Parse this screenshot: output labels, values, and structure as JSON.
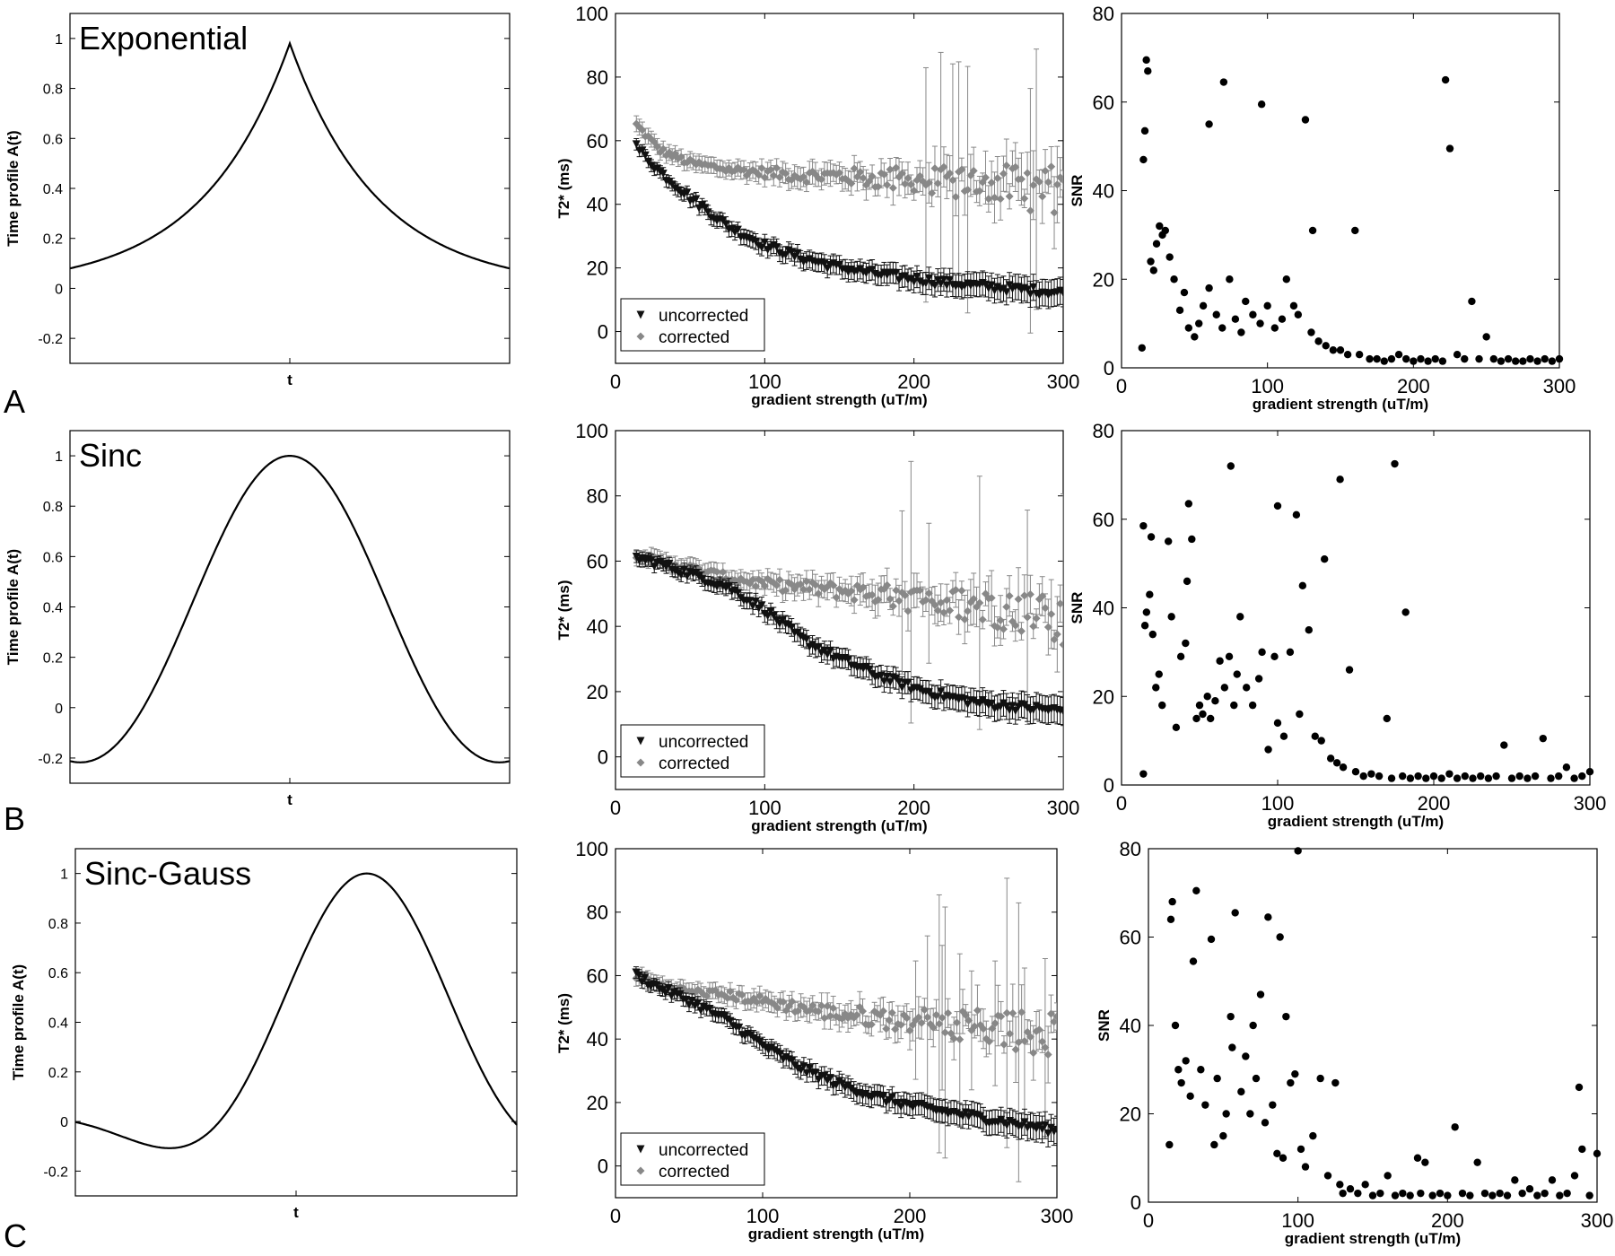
{
  "panel_labels": [
    "A",
    "B",
    "C"
  ],
  "chart_data": [
    {
      "id": "A-profile",
      "type": "line",
      "title": "Exponential",
      "xlabel": "t",
      "ylabel": "Time profile A(t)",
      "ylim": [
        -0.3,
        1.1
      ],
      "yticks": [
        "-0.2",
        "0",
        "0.2",
        "0.4",
        "0.6",
        "0.8",
        "1"
      ],
      "shape": "exponential",
      "params": {
        "peak": 0.98,
        "edge": 0.08
      },
      "series": [
        {
          "color": "#000000"
        }
      ]
    },
    {
      "id": "A-t2",
      "type": "scatter",
      "xlabel": "gradient strength (uT/m)",
      "ylabel": "T2* (ms)",
      "xlim": [
        0,
        300
      ],
      "ylim": [
        -10,
        100
      ],
      "xticks": [
        "0",
        "100",
        "200",
        "300"
      ],
      "yticks": [
        "0",
        "20",
        "40",
        "60",
        "80",
        "100"
      ],
      "legend_position": "bottom-left",
      "series": [
        {
          "name": "uncorrected",
          "marker": "triangle-down",
          "color": "#111111",
          "x": [
            14,
            30,
            50,
            75,
            100,
            125,
            150,
            175,
            200,
            225,
            250,
            275,
            300
          ],
          "y": [
            58,
            50,
            42,
            33,
            27,
            23,
            20,
            18,
            16.5,
            15,
            14,
            13,
            12
          ]
        },
        {
          "name": "corrected",
          "marker": "diamond",
          "color": "#888888",
          "x": [
            14,
            30,
            50,
            75,
            100,
            125,
            150,
            175,
            200,
            225,
            250,
            275,
            300
          ],
          "y": [
            65,
            57,
            53,
            51,
            50,
            49,
            49,
            48,
            48,
            47,
            47,
            45,
            44
          ]
        }
      ]
    },
    {
      "id": "A-snr",
      "type": "scatter",
      "xlabel": "gradient strength (uT/m)",
      "ylabel": "SNR",
      "xlim": [
        0,
        300
      ],
      "ylim": [
        0,
        80
      ],
      "xticks": [
        "0",
        "100",
        "200",
        "300"
      ],
      "yticks": [
        "0",
        "20",
        "40",
        "60",
        "80"
      ],
      "series": [
        {
          "color": "#000000",
          "x": [
            14,
            15,
            16,
            17,
            18,
            20,
            22,
            24,
            26,
            28,
            30,
            33,
            36,
            40,
            43,
            46,
            50,
            53,
            56,
            60,
            60,
            65,
            69,
            70,
            74,
            78,
            82,
            85,
            90,
            95,
            96,
            100,
            105,
            110,
            113,
            118,
            121,
            126,
            130,
            131,
            135,
            140,
            145,
            150,
            155,
            160,
            163,
            170,
            175,
            180,
            185,
            190,
            195,
            200,
            205,
            210,
            215,
            220,
            222,
            225,
            230,
            235,
            240,
            245,
            250,
            255,
            260,
            265,
            270,
            275,
            280,
            285,
            290,
            295,
            300
          ],
          "y": [
            4.5,
            47,
            53.5,
            69.5,
            67,
            24,
            22,
            28,
            32,
            30,
            31,
            25,
            20,
            13,
            17,
            9,
            7,
            10,
            14,
            55,
            18,
            12,
            9,
            64.5,
            20,
            11,
            8,
            15,
            12,
            10,
            59.5,
            14,
            9,
            11,
            20,
            14,
            12,
            56,
            8,
            31,
            6,
            5,
            4,
            4,
            3,
            31,
            3,
            2,
            2,
            1.5,
            2,
            3,
            2,
            1.5,
            2,
            1.5,
            2,
            1.5,
            65,
            49.5,
            3,
            2,
            15,
            2,
            7,
            2,
            1.5,
            2,
            1.5,
            1.5,
            2,
            1.5,
            2,
            1.5,
            2
          ]
        }
      ]
    },
    {
      "id": "B-profile",
      "type": "line",
      "title": "Sinc",
      "xlabel": "t",
      "ylabel": "Time profile A(t)",
      "ylim": [
        -0.3,
        1.1
      ],
      "yticks": [
        "-0.2",
        "0",
        "0.2",
        "0.4",
        "0.6",
        "0.8",
        "1"
      ],
      "shape": "sinc",
      "params": {
        "peak": 1.0,
        "min": -0.2
      },
      "series": [
        {
          "color": "#000000"
        }
      ]
    },
    {
      "id": "B-t2",
      "type": "scatter",
      "xlabel": "gradient strength (uT/m)",
      "ylabel": "T2* (ms)",
      "xlim": [
        0,
        300
      ],
      "ylim": [
        -10,
        100
      ],
      "xticks": [
        "0",
        "100",
        "200",
        "300"
      ],
      "yticks": [
        "0",
        "20",
        "40",
        "60",
        "80",
        "100"
      ],
      "legend_position": "bottom-left",
      "series": [
        {
          "name": "uncorrected",
          "marker": "triangle-down",
          "color": "#111111",
          "x": [
            14,
            30,
            50,
            75,
            100,
            125,
            150,
            175,
            200,
            225,
            250,
            275,
            300
          ],
          "y": [
            61,
            59,
            56,
            52,
            45,
            36,
            30,
            25,
            21,
            18,
            16,
            15,
            14
          ]
        },
        {
          "name": "corrected",
          "marker": "diamond",
          "color": "#888888",
          "x": [
            14,
            30,
            50,
            75,
            100,
            125,
            150,
            175,
            200,
            225,
            250,
            275,
            300
          ],
          "y": [
            62,
            60,
            58,
            55,
            53,
            52,
            51,
            50,
            48,
            47,
            46,
            44,
            40
          ]
        }
      ]
    },
    {
      "id": "B-snr",
      "type": "scatter",
      "xlabel": "gradient strength (uT/m)",
      "ylabel": "SNR",
      "xlim": [
        0,
        300
      ],
      "ylim": [
        0,
        80
      ],
      "xticks": [
        "0",
        "100",
        "200",
        "300"
      ],
      "yticks": [
        "0",
        "20",
        "40",
        "60",
        "80"
      ],
      "series": [
        {
          "color": "#000000",
          "x": [
            14,
            14,
            15,
            16,
            18,
            19,
            20,
            22,
            24,
            26,
            30,
            32,
            35,
            38,
            41,
            42,
            43,
            45,
            48,
            50,
            52,
            55,
            57,
            60,
            63,
            66,
            69,
            70,
            72,
            74,
            76,
            80,
            84,
            88,
            90,
            94,
            98,
            100,
            100,
            104,
            108,
            112,
            114,
            116,
            120,
            124,
            128,
            130,
            134,
            138,
            140,
            142,
            146,
            150,
            155,
            160,
            165,
            170,
            173,
            175,
            180,
            182,
            185,
            190,
            195,
            200,
            205,
            210,
            215,
            220,
            225,
            230,
            235,
            240,
            245,
            250,
            255,
            260,
            265,
            270,
            275,
            280,
            285,
            290,
            295,
            300
          ],
          "y": [
            2.5,
            58.5,
            36,
            39,
            43,
            56,
            34,
            22,
            25,
            18,
            55,
            38,
            13,
            29,
            32,
            46,
            63.5,
            55.5,
            15,
            18,
            16,
            20,
            15,
            19,
            28,
            22,
            29,
            72,
            18,
            25,
            38,
            22,
            18,
            24,
            30,
            8,
            29,
            63,
            14,
            11,
            30,
            61,
            16,
            45,
            35,
            11,
            10,
            51,
            6,
            5,
            69,
            4,
            26,
            3,
            2,
            2.5,
            2,
            15,
            1.5,
            72.5,
            2,
            39,
            1.5,
            2,
            1.5,
            2,
            1.5,
            2.5,
            1.5,
            2,
            1.5,
            2,
            1.5,
            2,
            9,
            1.5,
            2,
            1.5,
            2,
            10.5,
            1.5,
            2,
            4,
            1.5,
            2,
            3
          ]
        }
      ]
    },
    {
      "id": "C-profile",
      "type": "line",
      "title": "Sinc-Gauss",
      "xlabel": "t",
      "ylabel": "Time profile A(t)",
      "ylim": [
        -0.3,
        1.1
      ],
      "yticks": [
        "-0.2",
        "0",
        "0.2",
        "0.4",
        "0.6",
        "0.8",
        "1"
      ],
      "shape": "sinc-gauss",
      "params": {
        "peak": 1.0,
        "min": -0.14
      },
      "series": [
        {
          "color": "#000000"
        }
      ]
    },
    {
      "id": "C-t2",
      "type": "scatter",
      "xlabel": "gradient strength (uT/m)",
      "ylabel": "T2* (ms)",
      "xlim": [
        0,
        300
      ],
      "ylim": [
        -10,
        100
      ],
      "xticks": [
        "0",
        "100",
        "200",
        "300"
      ],
      "yticks": [
        "0",
        "20",
        "40",
        "60",
        "80",
        "100"
      ],
      "legend_position": "bottom-left",
      "series": [
        {
          "name": "uncorrected",
          "marker": "triangle-down",
          "color": "#111111",
          "x": [
            14,
            30,
            50,
            75,
            100,
            125,
            150,
            175,
            200,
            225,
            250,
            275,
            300
          ],
          "y": [
            60,
            56,
            52,
            46,
            38,
            31,
            26,
            22,
            19,
            17,
            15,
            13,
            11
          ]
        },
        {
          "name": "corrected",
          "marker": "diamond",
          "color": "#888888",
          "x": [
            14,
            30,
            50,
            75,
            100,
            125,
            150,
            175,
            200,
            225,
            250,
            275,
            300
          ],
          "y": [
            60,
            57,
            55,
            54,
            52,
            50,
            48,
            47,
            46,
            45,
            44,
            42,
            40
          ]
        }
      ]
    },
    {
      "id": "C-snr",
      "type": "scatter",
      "xlabel": "gradient strength (uT/m)",
      "ylabel": "SNR",
      "xlim": [
        0,
        300
      ],
      "ylim": [
        0,
        80
      ],
      "xticks": [
        "0",
        "100",
        "200",
        "300"
      ],
      "yticks": [
        "0",
        "20",
        "40",
        "60",
        "80"
      ],
      "series": [
        {
          "color": "#000000",
          "x": [
            14,
            15,
            16,
            18,
            20,
            22,
            25,
            28,
            30,
            32,
            35,
            38,
            42,
            44,
            46,
            50,
            52,
            55,
            56,
            58,
            62,
            65,
            68,
            70,
            72,
            75,
            78,
            80,
            83,
            86,
            88,
            90,
            92,
            95,
            98,
            100,
            102,
            105,
            110,
            115,
            120,
            125,
            128,
            130,
            135,
            140,
            145,
            150,
            155,
            160,
            165,
            170,
            175,
            180,
            182,
            185,
            190,
            195,
            200,
            205,
            210,
            215,
            220,
            225,
            230,
            235,
            240,
            245,
            250,
            255,
            260,
            265,
            270,
            275,
            280,
            285,
            288,
            290,
            295,
            300
          ],
          "y": [
            13,
            64,
            68,
            40,
            30,
            27,
            32,
            24,
            54.5,
            70.5,
            30,
            22,
            59.5,
            13,
            28,
            15,
            20,
            42,
            35,
            65.5,
            25,
            33,
            20,
            40,
            28,
            47,
            18,
            64.5,
            22,
            11,
            60,
            10,
            42,
            27,
            29,
            79.5,
            12,
            8,
            15,
            28,
            6,
            27,
            4,
            2,
            3,
            2,
            4,
            1.5,
            2,
            6,
            1.5,
            2,
            1.5,
            10,
            2,
            9,
            1.5,
            2,
            1.5,
            17,
            2,
            1.5,
            9,
            2,
            1.5,
            2,
            1.5,
            5,
            2,
            3,
            1.5,
            2,
            5,
            1.5,
            2,
            6,
            26,
            12,
            1.5,
            11
          ]
        }
      ]
    }
  ]
}
